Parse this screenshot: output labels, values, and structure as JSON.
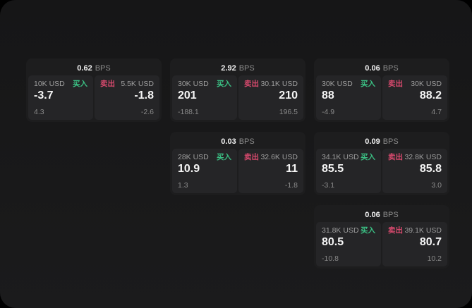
{
  "labels": {
    "bps_unit": "BPS",
    "buy": "买入",
    "sell": "卖出"
  },
  "colors": {
    "buy_green": "#3bc184",
    "sell_red": "#d94a6e",
    "screen_bg": "#1a1a1b",
    "card_bg": "#1d1d1e",
    "panel_bg": "#252527",
    "price_white": "#f5f5f5"
  },
  "cards": [
    {
      "bps": "0.62",
      "buy": {
        "amount": "10K USD",
        "price": "-3.7",
        "delta": "4.3"
      },
      "sell": {
        "amount": "5.5K USD",
        "price": "-1.8",
        "delta": "-2.6"
      }
    },
    {
      "bps": "2.92",
      "buy": {
        "amount": "30K USD",
        "price": "201",
        "delta": "-188.1"
      },
      "sell": {
        "amount": "30.1K USD",
        "price": "210",
        "delta": "196.5"
      }
    },
    {
      "bps": "0.06",
      "buy": {
        "amount": "30K USD",
        "price": "88",
        "delta": "-4.9"
      },
      "sell": {
        "amount": "30K USD",
        "price": "88.2",
        "delta": "4.7"
      }
    },
    {
      "bps": "0.03",
      "buy": {
        "amount": "28K USD",
        "price": "10.9",
        "delta": "1.3"
      },
      "sell": {
        "amount": "32.6K USD",
        "price": "11",
        "delta": "-1.8"
      }
    },
    {
      "bps": "0.09",
      "buy": {
        "amount": "34.1K USD",
        "price": "85.5",
        "delta": "-3.1"
      },
      "sell": {
        "amount": "32.8K USD",
        "price": "85.8",
        "delta": "3.0"
      }
    },
    {
      "bps": "0.06",
      "buy": {
        "amount": "31.8K USD",
        "price": "80.5",
        "delta": "-10.8"
      },
      "sell": {
        "amount": "39.1K USD",
        "price": "80.7",
        "delta": "10.2"
      }
    }
  ]
}
